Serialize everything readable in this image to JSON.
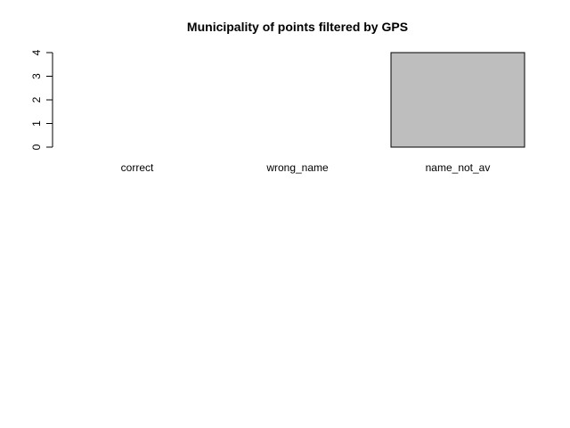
{
  "chart_data": {
    "type": "bar",
    "title": "Municipality of points filtered by GPS",
    "xlabel": "",
    "ylabel": "",
    "categories": [
      "correct",
      "wrong_name",
      "name_not_av"
    ],
    "values": [
      0,
      0,
      4
    ],
    "ylim": [
      0,
      4
    ],
    "yticks": [
      0,
      1,
      2,
      3,
      4
    ],
    "grid": false,
    "legend": "none",
    "bar_fill": "#bebebe",
    "bar_stroke": "#000000"
  }
}
